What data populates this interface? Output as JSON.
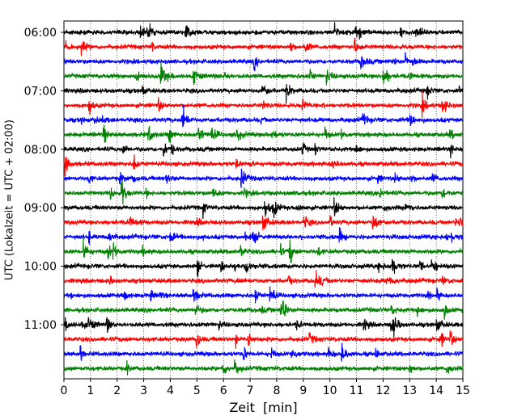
{
  "chart_data": {
    "type": "line",
    "title": "",
    "xlabel": "Zeit  [min]",
    "ylabel": "UTC (Lokalzeit = UTC + 02:00)",
    "xlim": [
      0,
      15
    ],
    "x_ticks": [
      0,
      1,
      2,
      3,
      4,
      5,
      6,
      7,
      8,
      9,
      10,
      11,
      12,
      13,
      14,
      15
    ],
    "y_tick_labels": [
      "06:00",
      "07:00",
      "08:00",
      "09:00",
      "10:00",
      "11:00"
    ],
    "trace_start_times": [
      "06:00",
      "06:15",
      "06:30",
      "06:45",
      "07:00",
      "07:15",
      "07:30",
      "07:45",
      "08:00",
      "08:15",
      "08:30",
      "08:45",
      "09:00",
      "09:15",
      "09:30",
      "09:45",
      "10:00",
      "10:15",
      "10:30",
      "10:45",
      "11:00",
      "11:15",
      "11:30",
      "11:45"
    ],
    "trace_color_cycle": [
      "#000000",
      "#ff0000",
      "#0000ff",
      "#008000"
    ],
    "vertical_grid": "dotted, every 1 min",
    "legend": "none"
  }
}
